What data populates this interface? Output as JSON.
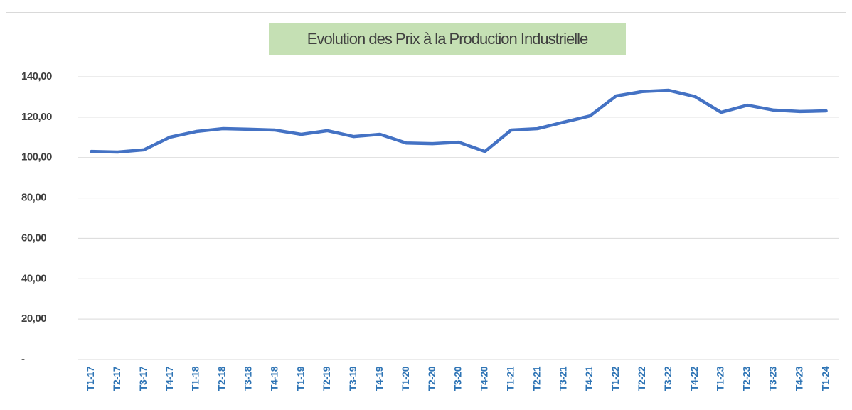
{
  "chart_data": {
    "type": "line",
    "title": "Evolution des Prix à la Production Industrielle",
    "categories": [
      "T1-17",
      "T2-17",
      "T3-17",
      "T4-17",
      "T1-18",
      "T2-18",
      "T3-18",
      "T4-18",
      "T1-19",
      "T2-19",
      "T3-19",
      "T4-19",
      "T1-20",
      "T2-20",
      "T3-20",
      "T4-20",
      "T1-21",
      "T2-21",
      "T3-21",
      "T4-21",
      "T1-22",
      "T2-22",
      "T3-22",
      "T4-22",
      "T1-23",
      "T2-23",
      "T3-23",
      "T4-23",
      "T1-24"
    ],
    "series": [
      {
        "color": "#4472c4",
        "values": [
          103.0,
          102.7,
          103.8,
          110.1,
          112.9,
          114.3,
          114.0,
          113.6,
          111.5,
          113.3,
          110.4,
          111.5,
          107.2,
          106.9,
          107.6,
          103.0,
          113.6,
          114.3,
          117.5,
          120.6,
          130.5,
          132.7,
          133.3,
          130.2,
          122.4,
          125.9,
          123.5,
          122.8,
          123.1
        ]
      }
    ],
    "ylim": [
      0,
      140
    ],
    "yticks": [
      {
        "value": 0,
        "label": "-"
      },
      {
        "value": 20,
        "label": "20,00"
      },
      {
        "value": 40,
        "label": "40,00"
      },
      {
        "value": 60,
        "label": "60,00"
      },
      {
        "value": 80,
        "label": "80,00"
      },
      {
        "value": 100,
        "label": "100,00"
      },
      {
        "value": 120,
        "label": "120,00"
      },
      {
        "value": 140,
        "label": "140,00"
      }
    ],
    "grid": true
  }
}
